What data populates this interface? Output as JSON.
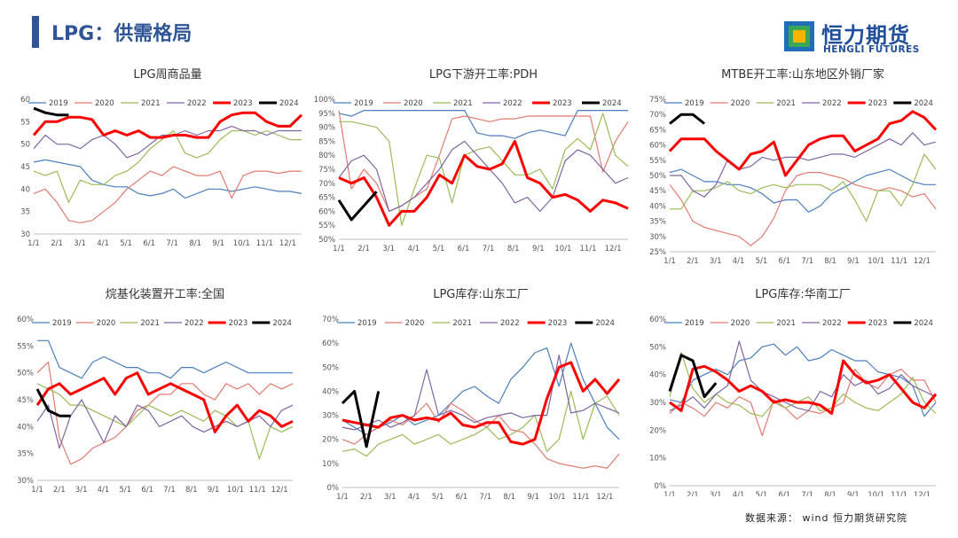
{
  "header": {
    "title": "LPG：供需格局"
  },
  "logo": {
    "cn": "恒力期货",
    "en": "HENGLI FUTURES"
  },
  "source": "数据来源： wind 恒力期货研究院",
  "colors": {
    "2019": "#4a7ebf",
    "2020": "#e07b6f",
    "2021": "#9bbb59",
    "2022": "#8064a2",
    "2023": "#ff0000",
    "2024": "#000000"
  },
  "chart_data": [
    {
      "type": "line",
      "title": "LPG周商品量",
      "ylim": [
        30,
        60
      ],
      "yticks": [
        30,
        35,
        40,
        45,
        50,
        55,
        60
      ],
      "ypct": false,
      "x_labels": [
        "1/1",
        "2/1",
        "3/1",
        "4/1",
        "5/1",
        "6/1",
        "7/1",
        "8/1",
        "9/1",
        "10/1",
        "11/1",
        "12/1"
      ],
      "series": [
        {
          "name": "2019",
          "values": [
            46,
            46.5,
            46,
            45.5,
            45,
            42,
            41,
            40.5,
            40.5,
            39,
            38.5,
            39,
            40,
            38,
            39,
            40,
            40,
            39.5,
            40,
            40.5,
            40,
            39.5,
            39.5,
            39
          ]
        },
        {
          "name": "2020",
          "values": [
            39,
            40,
            37,
            33,
            32.5,
            33,
            35,
            37,
            40,
            42,
            44,
            43,
            45,
            44,
            43,
            43,
            44,
            38,
            43,
            44,
            44,
            43.5,
            44,
            44
          ]
        },
        {
          "name": "2021",
          "values": [
            44,
            43,
            44,
            37,
            42,
            41,
            41,
            43,
            44,
            46,
            49,
            51,
            53,
            48,
            47,
            48,
            51,
            53,
            53,
            52,
            53,
            52,
            51,
            51
          ]
        },
        {
          "name": "2022",
          "values": [
            49,
            52,
            50,
            50,
            49,
            51,
            52,
            50,
            47,
            48,
            50,
            52,
            52,
            53,
            52,
            53,
            53,
            54,
            53,
            53,
            52,
            53,
            53,
            53
          ]
        },
        {
          "name": "2023",
          "values": [
            52,
            55,
            55,
            56,
            56,
            55.5,
            52,
            53,
            52,
            53,
            51.5,
            51.5,
            52,
            52,
            51.5,
            51.5,
            55,
            56.5,
            57,
            57,
            55,
            54,
            54,
            56.5
          ]
        },
        {
          "name": "2024",
          "values": [
            58,
            57,
            56.5,
            56.5
          ]
        }
      ]
    },
    {
      "type": "line",
      "title": "LPG下游开工率:PDH",
      "ylim": [
        0.5,
        1.0
      ],
      "yticks": [
        0.5,
        0.55,
        0.6,
        0.65,
        0.7,
        0.75,
        0.8,
        0.85,
        0.9,
        0.95,
        1.0
      ],
      "ypct": true,
      "x_labels": [
        "1/1",
        "2/1",
        "3/1",
        "4/1",
        "5/1",
        "6/1",
        "7/1",
        "8/1",
        "9/1",
        "10/1",
        "11/1",
        "12/1"
      ],
      "series": [
        {
          "name": "2019",
          "values": [
            0.95,
            0.94,
            0.96,
            0.96,
            0.96,
            0.96,
            0.96,
            0.96,
            0.96,
            0.96,
            0.96,
            0.88,
            0.87,
            0.87,
            0.86,
            0.88,
            0.89,
            0.88,
            0.87,
            0.96,
            0.96,
            0.96,
            0.96,
            0.96
          ]
        },
        {
          "name": "2020",
          "values": [
            0.96,
            0.68,
            0.75,
            0.7,
            0.6,
            0.62,
            0.65,
            0.68,
            0.8,
            0.93,
            0.94,
            0.93,
            0.92,
            0.93,
            0.93,
            0.94,
            0.94,
            0.94,
            0.94,
            0.94,
            0.94,
            0.74,
            0.85,
            0.92
          ]
        },
        {
          "name": "2021",
          "values": [
            0.92,
            0.92,
            0.91,
            0.9,
            0.85,
            0.55,
            0.68,
            0.8,
            0.79,
            0.63,
            0.8,
            0.82,
            0.83,
            0.78,
            0.73,
            0.73,
            0.75,
            0.68,
            0.82,
            0.86,
            0.82,
            0.95,
            0.8,
            0.76
          ]
        },
        {
          "name": "2022",
          "values": [
            0.72,
            0.78,
            0.8,
            0.75,
            0.6,
            0.62,
            0.65,
            0.7,
            0.75,
            0.82,
            0.85,
            0.8,
            0.75,
            0.7,
            0.63,
            0.65,
            0.6,
            0.65,
            0.78,
            0.82,
            0.8,
            0.75,
            0.7,
            0.72
          ]
        },
        {
          "name": "2023",
          "values": [
            0.72,
            0.7,
            0.72,
            0.65,
            0.55,
            0.6,
            0.6,
            0.65,
            0.73,
            0.7,
            0.8,
            0.76,
            0.75,
            0.77,
            0.85,
            0.72,
            0.7,
            0.65,
            0.66,
            0.64,
            0.6,
            0.64,
            0.63,
            0.61
          ]
        },
        {
          "name": "2024",
          "values": [
            0.64,
            0.57,
            0.62,
            0.67
          ]
        }
      ]
    },
    {
      "type": "line",
      "title": "MTBE开工率:山东地区外销厂家",
      "ylim": [
        0.25,
        0.75
      ],
      "yticks": [
        0.25,
        0.3,
        0.35,
        0.4,
        0.45,
        0.5,
        0.55,
        0.6,
        0.65,
        0.7,
        0.75
      ],
      "ypct": true,
      "x_labels": [
        "1/1",
        "2/1",
        "3/1",
        "4/1",
        "5/1",
        "6/1",
        "7/1",
        "8/1",
        "9/1",
        "10/1",
        "11/1",
        "12/1"
      ],
      "series": [
        {
          "name": "2019",
          "values": [
            0.51,
            0.52,
            0.5,
            0.48,
            0.48,
            0.47,
            0.47,
            0.46,
            0.44,
            0.41,
            0.42,
            0.42,
            0.38,
            0.4,
            0.44,
            0.46,
            0.48,
            0.5,
            0.51,
            0.52,
            0.5,
            0.48,
            0.47,
            0.47
          ]
        },
        {
          "name": "2020",
          "values": [
            0.47,
            0.42,
            0.35,
            0.33,
            0.32,
            0.31,
            0.3,
            0.27,
            0.3,
            0.36,
            0.45,
            0.5,
            0.51,
            0.51,
            0.5,
            0.49,
            0.47,
            0.46,
            0.45,
            0.46,
            0.45,
            0.43,
            0.44,
            0.39
          ]
        },
        {
          "name": "2021",
          "values": [
            0.39,
            0.39,
            0.45,
            0.45,
            0.46,
            0.48,
            0.45,
            0.44,
            0.46,
            0.47,
            0.46,
            0.47,
            0.47,
            0.47,
            0.45,
            0.48,
            0.42,
            0.35,
            0.45,
            0.45,
            0.4,
            0.47,
            0.57,
            0.52
          ]
        },
        {
          "name": "2022",
          "values": [
            0.5,
            0.5,
            0.45,
            0.43,
            0.47,
            0.55,
            0.52,
            0.53,
            0.56,
            0.55,
            0.56,
            0.56,
            0.55,
            0.56,
            0.57,
            0.57,
            0.56,
            0.58,
            0.6,
            0.62,
            0.6,
            0.64,
            0.6,
            0.61
          ]
        },
        {
          "name": "2023",
          "values": [
            0.58,
            0.62,
            0.62,
            0.62,
            0.58,
            0.55,
            0.52,
            0.57,
            0.58,
            0.61,
            0.5,
            0.55,
            0.6,
            0.62,
            0.63,
            0.63,
            0.58,
            0.6,
            0.62,
            0.67,
            0.68,
            0.71,
            0.69,
            0.65
          ]
        },
        {
          "name": "2024",
          "values": [
            0.67,
            0.7,
            0.7,
            0.67
          ]
        }
      ]
    },
    {
      "type": "line",
      "title": "烷基化装置开工率:全国",
      "ylim": [
        0.3,
        0.6
      ],
      "yticks": [
        0.3,
        0.35,
        0.4,
        0.45,
        0.5,
        0.55,
        0.6
      ],
      "ypct": true,
      "x_labels": [
        "1/1",
        "2/1",
        "3/1",
        "4/1",
        "5/1",
        "6/1",
        "7/1",
        "8/1",
        "9/1",
        "10/1",
        "11/1",
        "12/1"
      ],
      "series": [
        {
          "name": "2019",
          "values": [
            0.56,
            0.56,
            0.51,
            0.5,
            0.49,
            0.52,
            0.53,
            0.52,
            0.51,
            0.51,
            0.5,
            0.5,
            0.49,
            0.51,
            0.51,
            0.5,
            0.51,
            0.52,
            0.51,
            0.5,
            0.5,
            0.5,
            0.5,
            0.5
          ]
        },
        {
          "name": "2020",
          "values": [
            0.5,
            0.52,
            0.38,
            0.33,
            0.34,
            0.36,
            0.37,
            0.38,
            0.4,
            0.43,
            0.44,
            0.46,
            0.46,
            0.48,
            0.48,
            0.46,
            0.45,
            0.48,
            0.47,
            0.48,
            0.46,
            0.48,
            0.47,
            0.48
          ]
        },
        {
          "name": "2021",
          "values": [
            0.48,
            0.47,
            0.46,
            0.44,
            0.44,
            0.43,
            0.42,
            0.41,
            0.4,
            0.42,
            0.44,
            0.43,
            0.42,
            0.43,
            0.42,
            0.41,
            0.43,
            0.42,
            0.4,
            0.41,
            0.34,
            0.4,
            0.39,
            0.4
          ]
        },
        {
          "name": "2022",
          "values": [
            0.41,
            0.44,
            0.36,
            0.42,
            0.45,
            0.41,
            0.37,
            0.42,
            0.4,
            0.44,
            0.43,
            0.4,
            0.41,
            0.42,
            0.4,
            0.39,
            0.4,
            0.41,
            0.4,
            0.41,
            0.42,
            0.4,
            0.43,
            0.44
          ]
        },
        {
          "name": "2023",
          "values": [
            0.44,
            0.47,
            0.48,
            0.46,
            0.47,
            0.48,
            0.49,
            0.46,
            0.49,
            0.5,
            0.46,
            0.47,
            0.48,
            0.47,
            0.46,
            0.45,
            0.39,
            0.42,
            0.44,
            0.41,
            0.43,
            0.42,
            0.4,
            0.41
          ]
        },
        {
          "name": "2024",
          "values": [
            0.47,
            0.43,
            0.42,
            0.42
          ]
        }
      ]
    },
    {
      "type": "line",
      "title": "LPG库存:山东工厂",
      "ylim": [
        0.0,
        0.7
      ],
      "yticks": [
        0.0,
        0.1,
        0.2,
        0.3,
        0.4,
        0.5,
        0.6,
        0.7
      ],
      "ypct": true,
      "x_labels": [
        "1/1",
        "2/1",
        "3/1",
        "4/1",
        "5/1",
        "6/1",
        "7/1",
        "8/1",
        "9/1",
        "10/1",
        "11/1",
        "12/1"
      ],
      "series": [
        {
          "name": "2019",
          "values": [
            0.28,
            0.25,
            0.22,
            0.25,
            0.27,
            0.3,
            0.26,
            0.28,
            0.3,
            0.35,
            0.4,
            0.42,
            0.38,
            0.35,
            0.45,
            0.5,
            0.56,
            0.58,
            0.42,
            0.6,
            0.45,
            0.35,
            0.25,
            0.2
          ]
        },
        {
          "name": "2020",
          "values": [
            0.2,
            0.18,
            0.22,
            0.25,
            0.28,
            0.26,
            0.3,
            0.35,
            0.27,
            0.35,
            0.32,
            0.28,
            0.25,
            0.3,
            0.24,
            0.23,
            0.18,
            0.12,
            0.1,
            0.09,
            0.08,
            0.09,
            0.08,
            0.14
          ]
        },
        {
          "name": "2021",
          "values": [
            0.15,
            0.16,
            0.13,
            0.18,
            0.2,
            0.22,
            0.18,
            0.2,
            0.22,
            0.18,
            0.2,
            0.22,
            0.25,
            0.2,
            0.22,
            0.25,
            0.3,
            0.15,
            0.2,
            0.4,
            0.2,
            0.35,
            0.38,
            0.3
          ]
        },
        {
          "name": "2022",
          "values": [
            0.25,
            0.24,
            0.26,
            0.28,
            0.25,
            0.27,
            0.3,
            0.49,
            0.3,
            0.32,
            0.3,
            0.27,
            0.29,
            0.3,
            0.31,
            0.29,
            0.3,
            0.3,
            0.55,
            0.31,
            0.32,
            0.35,
            0.33,
            0.31
          ]
        },
        {
          "name": "2023",
          "values": [
            0.28,
            0.27,
            0.26,
            0.25,
            0.29,
            0.3,
            0.28,
            0.29,
            0.28,
            0.31,
            0.26,
            0.25,
            0.27,
            0.27,
            0.19,
            0.18,
            0.2,
            0.37,
            0.5,
            0.52,
            0.4,
            0.45,
            0.39,
            0.45
          ]
        },
        {
          "name": "2024",
          "values": [
            0.35,
            0.4,
            0.17,
            0.4
          ]
        }
      ]
    },
    {
      "type": "line",
      "title": "LPG库存:华南工厂",
      "ylim": [
        0.0,
        0.6
      ],
      "yticks": [
        0.0,
        0.1,
        0.2,
        0.3,
        0.4,
        0.5,
        0.6
      ],
      "ypct": true,
      "x_labels": [
        "1/1",
        "2/1",
        "3/1",
        "4/1",
        "5/1",
        "6/1",
        "7/1",
        "8/1",
        "9/1",
        "10/1",
        "11/1",
        "12/1"
      ],
      "series": [
        {
          "name": "2019",
          "values": [
            0.31,
            0.3,
            0.38,
            0.4,
            0.42,
            0.4,
            0.45,
            0.46,
            0.5,
            0.51,
            0.47,
            0.5,
            0.45,
            0.46,
            0.49,
            0.47,
            0.45,
            0.45,
            0.41,
            0.4,
            0.39,
            0.36,
            0.25,
            0.3
          ]
        },
        {
          "name": "2020",
          "values": [
            0.26,
            0.3,
            0.28,
            0.25,
            0.3,
            0.28,
            0.32,
            0.3,
            0.18,
            0.31,
            0.28,
            0.24,
            0.27,
            0.26,
            0.28,
            0.3,
            0.42,
            0.37,
            0.35,
            0.4,
            0.42,
            0.38,
            0.38,
            0.3
          ]
        },
        {
          "name": "2021",
          "values": [
            0.32,
            0.48,
            0.35,
            0.3,
            0.33,
            0.3,
            0.29,
            0.26,
            0.25,
            0.3,
            0.28,
            0.3,
            0.32,
            0.27,
            0.28,
            0.33,
            0.3,
            0.28,
            0.27,
            0.3,
            0.33,
            0.39,
            0.3,
            0.26
          ]
        },
        {
          "name": "2022",
          "values": [
            0.27,
            0.29,
            0.32,
            0.28,
            0.33,
            0.36,
            0.52,
            0.38,
            0.34,
            0.32,
            0.3,
            0.28,
            0.27,
            0.34,
            0.32,
            0.4,
            0.36,
            0.38,
            0.33,
            0.35,
            0.4,
            0.36,
            0.34,
            0.32
          ]
        },
        {
          "name": "2023",
          "values": [
            0.3,
            0.27,
            0.42,
            0.43,
            0.41,
            0.38,
            0.34,
            0.36,
            0.34,
            0.3,
            0.31,
            0.3,
            0.3,
            0.29,
            0.26,
            0.45,
            0.4,
            0.37,
            0.38,
            0.4,
            0.35,
            0.3,
            0.28,
            0.33
          ]
        },
        {
          "name": "2024",
          "values": [
            0.34,
            0.47,
            0.45,
            0.32,
            0.37
          ]
        }
      ]
    }
  ]
}
